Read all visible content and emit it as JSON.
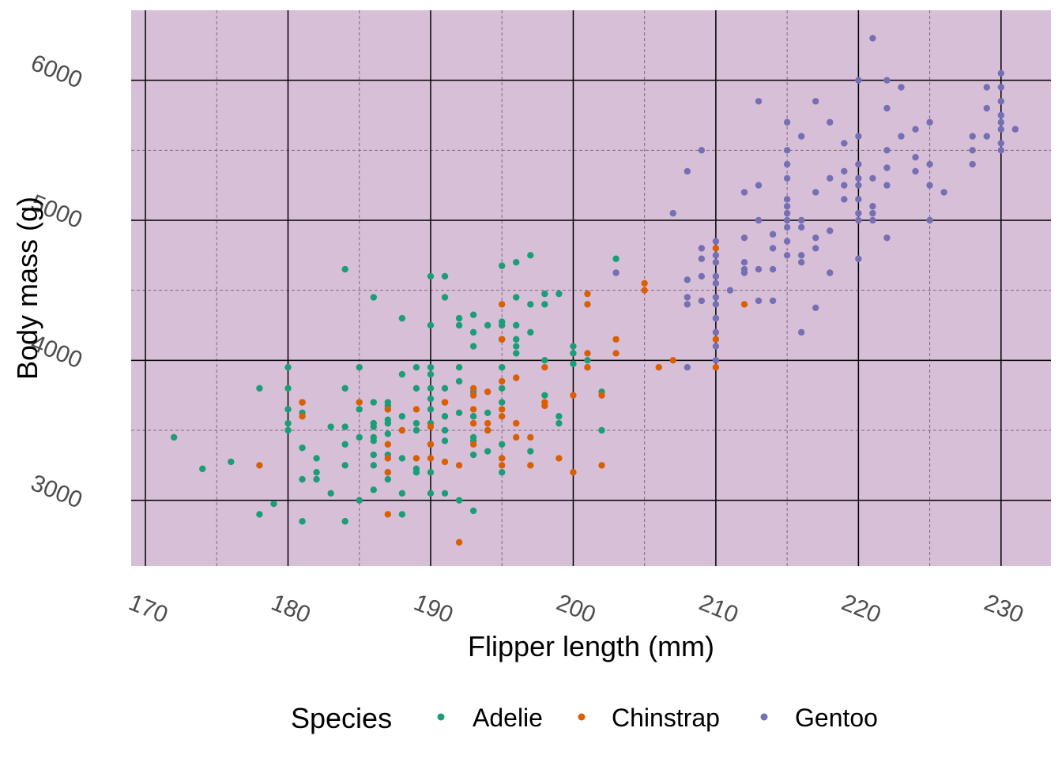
{
  "chart_data": {
    "type": "scatter",
    "title": "",
    "xlabel": "Flipper length (mm)",
    "ylabel": "Body mass (g)",
    "xlim": [
      169,
      233.5
    ],
    "ylim": [
      2530,
      6500
    ],
    "x_ticks": [
      170,
      180,
      190,
      200,
      210,
      220,
      230
    ],
    "x_tick_labels": [
      "170",
      "180",
      "190",
      "200",
      "210",
      "220",
      "230"
    ],
    "y_ticks": [
      3000,
      4000,
      5000,
      6000
    ],
    "y_tick_labels": [
      "3000",
      "4000",
      "5000",
      "6000"
    ],
    "x_minor_ticks": [
      175,
      185,
      195,
      205,
      215,
      225
    ],
    "y_minor_ticks": [
      3500,
      4500,
      5500
    ],
    "grid": true,
    "panel_background": "#d8bfd8",
    "legend": {
      "title": "Species",
      "position": "bottom"
    },
    "series": [
      {
        "name": "Adelie",
        "color": "#1b9e77",
        "points": [
          [
            172,
            3450
          ],
          [
            174,
            3225
          ],
          [
            176,
            3275
          ],
          [
            178,
            3800
          ],
          [
            178,
            2900
          ],
          [
            179,
            2975
          ],
          [
            180,
            3950
          ],
          [
            180,
            3800
          ],
          [
            180,
            3650
          ],
          [
            180,
            3550
          ],
          [
            180,
            3500
          ],
          [
            181,
            3700
          ],
          [
            181,
            3625
          ],
          [
            181,
            3375
          ],
          [
            181,
            3150
          ],
          [
            181,
            2850
          ],
          [
            182,
            3300
          ],
          [
            182,
            3200
          ],
          [
            182,
            3150
          ],
          [
            183,
            3525
          ],
          [
            183,
            3050
          ],
          [
            184,
            3525
          ],
          [
            184,
            3400
          ],
          [
            184,
            3800
          ],
          [
            184,
            4650
          ],
          [
            184,
            3250
          ],
          [
            184,
            2850
          ],
          [
            185,
            3950
          ],
          [
            185,
            3650
          ],
          [
            185,
            3450
          ],
          [
            185,
            3000
          ],
          [
            186,
            3525
          ],
          [
            186,
            3450
          ],
          [
            186,
            3700
          ],
          [
            186,
            3550
          ],
          [
            186,
            3250
          ],
          [
            186,
            3425
          ],
          [
            186,
            3075
          ],
          [
            186,
            4450
          ],
          [
            186,
            3325
          ],
          [
            187,
            3675
          ],
          [
            187,
            3475
          ],
          [
            187,
            3325
          ],
          [
            187,
            3150
          ],
          [
            187,
            3650
          ],
          [
            187,
            3700
          ],
          [
            187,
            3575
          ],
          [
            187,
            3200
          ],
          [
            187,
            3550
          ],
          [
            188,
            3300
          ],
          [
            188,
            3600
          ],
          [
            188,
            3900
          ],
          [
            188,
            4300
          ],
          [
            188,
            2900
          ],
          [
            188,
            3050
          ],
          [
            189,
            3950
          ],
          [
            189,
            3550
          ],
          [
            189,
            3200
          ],
          [
            189,
            3800
          ],
          [
            189,
            3500
          ],
          [
            189,
            3225
          ],
          [
            190,
            3800
          ],
          [
            190,
            3650
          ],
          [
            190,
            3900
          ],
          [
            190,
            4600
          ],
          [
            190,
            3400
          ],
          [
            190,
            3725
          ],
          [
            190,
            3050
          ],
          [
            190,
            3200
          ],
          [
            190,
            3550
          ],
          [
            190,
            3950
          ],
          [
            190,
            4250
          ],
          [
            191,
            3700
          ],
          [
            191,
            3500
          ],
          [
            191,
            4450
          ],
          [
            191,
            3050
          ],
          [
            191,
            3800
          ],
          [
            191,
            3425
          ],
          [
            191,
            3600
          ],
          [
            191,
            4600
          ],
          [
            192,
            3000
          ],
          [
            192,
            3625
          ],
          [
            192,
            4300
          ],
          [
            192,
            3950
          ],
          [
            192,
            4250
          ],
          [
            192,
            3850
          ],
          [
            193,
            3325
          ],
          [
            193,
            3425
          ],
          [
            193,
            3600
          ],
          [
            193,
            3450
          ],
          [
            193,
            3775
          ],
          [
            193,
            4325
          ],
          [
            193,
            4100
          ],
          [
            193,
            4200
          ],
          [
            193,
            2925
          ],
          [
            194,
            4250
          ],
          [
            194,
            3500
          ],
          [
            194,
            3350
          ],
          [
            194,
            3625
          ],
          [
            195,
            3700
          ],
          [
            195,
            4275
          ],
          [
            195,
            4150
          ],
          [
            195,
            3800
          ],
          [
            195,
            3300
          ],
          [
            195,
            3200
          ],
          [
            195,
            4675
          ],
          [
            195,
            3950
          ],
          [
            195,
            4250
          ],
          [
            195,
            3400
          ],
          [
            196,
            4450
          ],
          [
            196,
            4050
          ],
          [
            196,
            4100
          ],
          [
            196,
            4700
          ],
          [
            196,
            4150
          ],
          [
            196,
            4250
          ],
          [
            197,
            4750
          ],
          [
            197,
            3350
          ],
          [
            197,
            4400
          ],
          [
            197,
            4200
          ],
          [
            198,
            4000
          ],
          [
            198,
            3750
          ],
          [
            198,
            4475
          ],
          [
            198,
            4400
          ],
          [
            199,
            3600
          ],
          [
            199,
            4475
          ],
          [
            199,
            3550
          ],
          [
            200,
            4050
          ],
          [
            200,
            3975
          ],
          [
            200,
            4100
          ],
          [
            201,
            4000
          ],
          [
            201,
            3950
          ],
          [
            202,
            3775
          ],
          [
            202,
            3500
          ],
          [
            203,
            4725
          ]
        ]
      },
      {
        "name": "Chinstrap",
        "color": "#d95f02",
        "points": [
          [
            178,
            3250
          ],
          [
            181,
            3700
          ],
          [
            181,
            3600
          ],
          [
            185,
            3700
          ],
          [
            187,
            2900
          ],
          [
            187,
            3200
          ],
          [
            187,
            3300
          ],
          [
            187,
            3400
          ],
          [
            187,
            3650
          ],
          [
            188,
            3500
          ],
          [
            189,
            3650
          ],
          [
            189,
            3300
          ],
          [
            190,
            3400
          ],
          [
            190,
            3300
          ],
          [
            190,
            3525
          ],
          [
            191,
            3275
          ],
          [
            191,
            3700
          ],
          [
            192,
            3250
          ],
          [
            192,
            2700
          ],
          [
            193,
            3550
          ],
          [
            193,
            3750
          ],
          [
            193,
            3650
          ],
          [
            193,
            3400
          ],
          [
            193,
            3800
          ],
          [
            194,
            3775
          ],
          [
            194,
            3500
          ],
          [
            194,
            3550
          ],
          [
            195,
            3300
          ],
          [
            195,
            3250
          ],
          [
            195,
            3600
          ],
          [
            195,
            3850
          ],
          [
            195,
            3650
          ],
          [
            195,
            4150
          ],
          [
            195,
            4400
          ],
          [
            196,
            3550
          ],
          [
            196,
            3450
          ],
          [
            196,
            3875
          ],
          [
            197,
            3450
          ],
          [
            197,
            3250
          ],
          [
            198,
            3700
          ],
          [
            198,
            3675
          ],
          [
            198,
            3950
          ],
          [
            199,
            3300
          ],
          [
            200,
            3750
          ],
          [
            200,
            3200
          ],
          [
            201,
            3950
          ],
          [
            201,
            4050
          ],
          [
            201,
            4400
          ],
          [
            201,
            4475
          ],
          [
            202,
            3750
          ],
          [
            202,
            3250
          ],
          [
            203,
            4150
          ],
          [
            203,
            4050
          ],
          [
            205,
            4550
          ],
          [
            205,
            4500
          ],
          [
            206,
            3950
          ],
          [
            207,
            4000
          ],
          [
            210,
            4800
          ],
          [
            210,
            4150
          ],
          [
            210,
            3950
          ],
          [
            212,
            4400
          ]
        ]
      },
      {
        "name": "Gentoo",
        "color": "#7570b3",
        "points": [
          [
            203,
            4625
          ],
          [
            207,
            5050
          ],
          [
            208,
            4575
          ],
          [
            208,
            4450
          ],
          [
            208,
            4400
          ],
          [
            208,
            3950
          ],
          [
            208,
            5350
          ],
          [
            209,
            5500
          ],
          [
            209,
            4425
          ],
          [
            209,
            4600
          ],
          [
            209,
            4725
          ],
          [
            209,
            4800
          ],
          [
            210,
            4850
          ],
          [
            210,
            4750
          ],
          [
            210,
            4700
          ],
          [
            210,
            4600
          ],
          [
            210,
            4550
          ],
          [
            210,
            4450
          ],
          [
            210,
            4400
          ],
          [
            210,
            4300
          ],
          [
            210,
            4200
          ],
          [
            210,
            4100
          ],
          [
            210,
            4000
          ],
          [
            211,
            4500
          ],
          [
            212,
            4875
          ],
          [
            212,
            4700
          ],
          [
            212,
            4650
          ],
          [
            212,
            4625
          ],
          [
            212,
            5200
          ],
          [
            213,
            5000
          ],
          [
            213,
            5250
          ],
          [
            213,
            5850
          ],
          [
            213,
            4650
          ],
          [
            213,
            4425
          ],
          [
            214,
            4650
          ],
          [
            214,
            4900
          ],
          [
            214,
            4800
          ],
          [
            214,
            4425
          ],
          [
            215,
            4850
          ],
          [
            215,
            4750
          ],
          [
            215,
            5050
          ],
          [
            215,
            5100
          ],
          [
            215,
            5150
          ],
          [
            215,
            5300
          ],
          [
            215,
            5400
          ],
          [
            215,
            5500
          ],
          [
            215,
            5700
          ],
          [
            215,
            4950
          ],
          [
            215,
            5000
          ],
          [
            216,
            4950
          ],
          [
            216,
            4700
          ],
          [
            216,
            4750
          ],
          [
            216,
            5600
          ],
          [
            216,
            5000
          ],
          [
            216,
            4200
          ],
          [
            217,
            4875
          ],
          [
            217,
            5850
          ],
          [
            217,
            4800
          ],
          [
            217,
            5200
          ],
          [
            217,
            4375
          ],
          [
            218,
            4925
          ],
          [
            218,
            5300
          ],
          [
            218,
            5700
          ],
          [
            218,
            4625
          ],
          [
            219,
            5350
          ],
          [
            219,
            5250
          ],
          [
            219,
            5550
          ],
          [
            219,
            5150
          ],
          [
            220,
            5050
          ],
          [
            220,
            5400
          ],
          [
            220,
            5250
          ],
          [
            220,
            5300
          ],
          [
            220,
            5150
          ],
          [
            220,
            5600
          ],
          [
            220,
            6000
          ],
          [
            220,
            5000
          ],
          [
            220,
            4725
          ],
          [
            221,
            5100
          ],
          [
            221,
            5050
          ],
          [
            221,
            5300
          ],
          [
            221,
            5000
          ],
          [
            221,
            6300
          ],
          [
            222,
            5500
          ],
          [
            222,
            5375
          ],
          [
            222,
            5250
          ],
          [
            222,
            5800
          ],
          [
            222,
            6000
          ],
          [
            222,
            4875
          ],
          [
            223,
            5600
          ],
          [
            223,
            5950
          ],
          [
            224,
            5450
          ],
          [
            224,
            5650
          ],
          [
            224,
            5350
          ],
          [
            225,
            5700
          ],
          [
            225,
            5400
          ],
          [
            225,
            5250
          ],
          [
            225,
            5000
          ],
          [
            226,
            5200
          ],
          [
            228,
            5400
          ],
          [
            228,
            5500
          ],
          [
            228,
            5600
          ],
          [
            229,
            5800
          ],
          [
            229,
            5950
          ],
          [
            229,
            5600
          ],
          [
            230,
            5650
          ],
          [
            230,
            5700
          ],
          [
            230,
            5750
          ],
          [
            230,
            5850
          ],
          [
            230,
            5950
          ],
          [
            230,
            6050
          ],
          [
            230,
            5550
          ],
          [
            230,
            5500
          ],
          [
            231,
            5650
          ]
        ]
      }
    ]
  }
}
